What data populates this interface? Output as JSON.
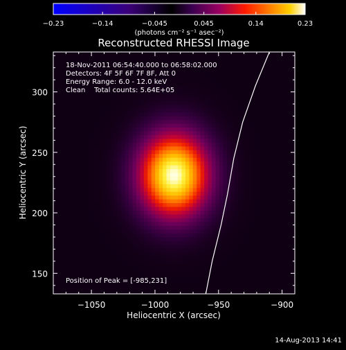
{
  "chart_data": {
    "type": "heatmap",
    "title": "Reconstructed RHESSI Image",
    "xlabel": "Heliocentric X (arcsec)",
    "ylabel": "Heliocentric Y (arcsec)",
    "xlim": [
      -1080,
      -890
    ],
    "ylim": [
      133,
      333
    ],
    "x_ticks": [
      -1050,
      -1000,
      -950,
      -900
    ],
    "x_tick_labels": [
      "−1050",
      "−1000",
      "−950",
      "−900"
    ],
    "y_ticks": [
      150,
      200,
      250,
      300
    ],
    "y_tick_labels": [
      "150",
      "200",
      "250",
      "300"
    ],
    "colorbar": {
      "range": [
        -0.23,
        0.23
      ],
      "ticks": [
        -0.23,
        -0.14,
        -0.045,
        0.045,
        0.14,
        0.23
      ],
      "tick_labels": [
        "−0.23",
        "−0.14",
        "−0.045",
        "0.045",
        "0.14",
        "0.23"
      ],
      "unit_label": "(photons cm⁻² s⁻¹ asec⁻²)"
    },
    "source": {
      "peak_position": [
        -985,
        231
      ],
      "peak_value": 0.23,
      "sigma_x_arcsec": 19,
      "sigma_y_arcsec": 24
    },
    "limb_curve": [
      [
        -960,
        133
      ],
      [
        -955,
        160
      ],
      [
        -948,
        190
      ],
      [
        -943,
        215
      ],
      [
        -938,
        245
      ],
      [
        -931,
        275
      ],
      [
        -921,
        305
      ],
      [
        -910,
        333
      ]
    ],
    "annotations": [
      "18-Nov-2011 06:54:40.000 to 06:58:02.000",
      "Detectors: 4F 5F 6F 7F 8F, Att 0",
      "Energy Range: 6.0 - 12.0 keV",
      "Clean    Total counts: 5.64E+05"
    ],
    "peak_label": "Position of Peak = [-985,231]",
    "timestamp": "14-Aug-2013 14:41",
    "grid": false,
    "legend": "none"
  }
}
